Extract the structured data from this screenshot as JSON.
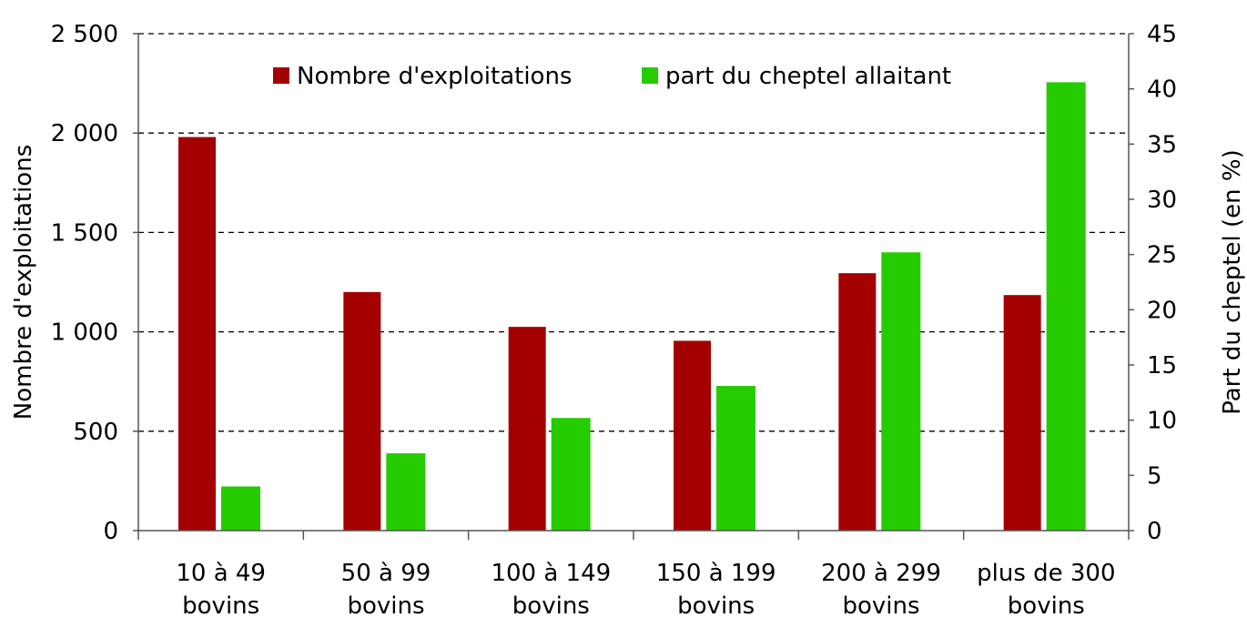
{
  "chart_data": {
    "type": "bar",
    "categories": [
      [
        "10 à 49",
        "bovins"
      ],
      [
        "50 à 99",
        "bovins"
      ],
      [
        "100 à 149",
        "bovins"
      ],
      [
        "150 à 199",
        "bovins"
      ],
      [
        "200 à 299",
        "bovins"
      ],
      [
        "plus de 300",
        "bovins"
      ]
    ],
    "series": [
      {
        "name": "Nombre d'exploitations",
        "axis": "left",
        "color": "#A50000",
        "values": [
          1980,
          1200,
          1025,
          955,
          1295,
          1185
        ]
      },
      {
        "name": "part du cheptel allaitant",
        "axis": "right",
        "color": "#24CC00",
        "values": [
          4.0,
          7.0,
          10.2,
          13.1,
          25.2,
          40.6
        ]
      }
    ],
    "ylabel": "Nombre d'exploitations",
    "y2label": "Part du cheptel (en %)",
    "ylim": [
      0,
      2500
    ],
    "y2lim": [
      0,
      45
    ],
    "yticks": [
      "0",
      "500",
      "1 000",
      "1 500",
      "2 000",
      "2 500"
    ],
    "y2ticks": [
      "0",
      "5",
      "10",
      "15",
      "20",
      "25",
      "30",
      "35",
      "40",
      "45"
    ],
    "grid": "horizontal dashed",
    "legend": "top-center"
  }
}
